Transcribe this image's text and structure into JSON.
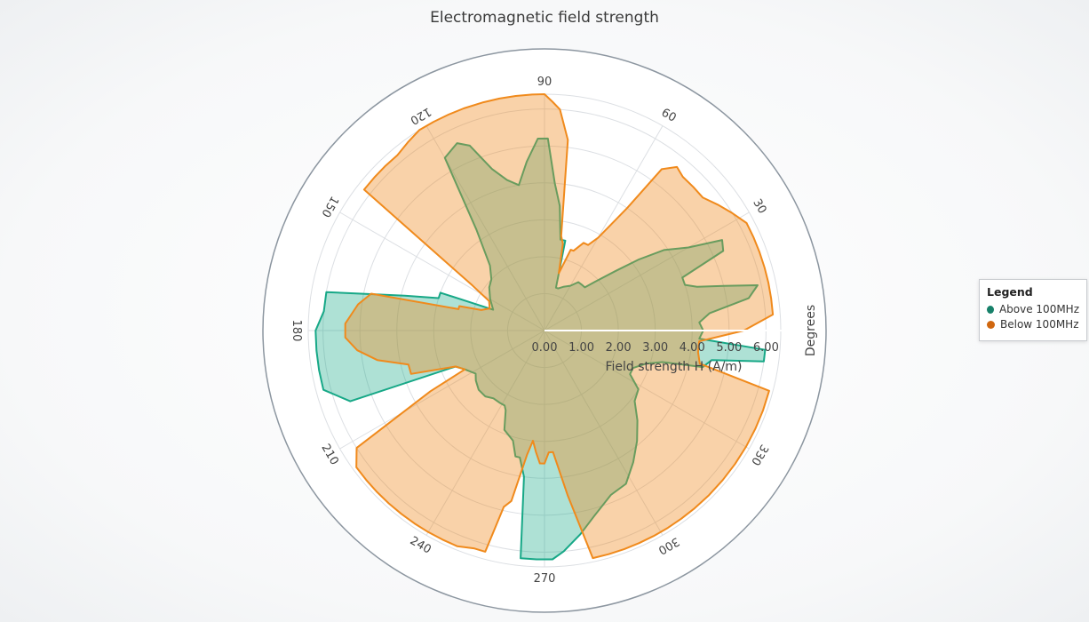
{
  "chart_data": {
    "type": "polar-area",
    "title": "Electromagnetic field strength",
    "radial_axis": {
      "label": "Field strength H (A/m)",
      "ticks": [
        "0.00",
        "1.00",
        "2.00",
        "3.00",
        "4.00",
        "5.00",
        "6.00"
      ],
      "range": [
        0,
        6.4
      ]
    },
    "angular_axis": {
      "label": "Degrees",
      "ticks": [
        "90",
        "60",
        "30",
        "0",
        "330",
        "300",
        "270",
        "240",
        "210",
        "180",
        "150",
        "120"
      ],
      "range": [
        0,
        360
      ]
    },
    "grid": true,
    "legend_position": "right",
    "series": [
      {
        "name": "Above 100MHz",
        "color": "#17a887",
        "points": [
          [
            0,
            4.3
          ],
          [
            3,
            4.2
          ],
          [
            6,
            4.5
          ],
          [
            9,
            5.6
          ],
          [
            12,
            5.9
          ],
          [
            14,
            5.0
          ],
          [
            16,
            4.3
          ],
          [
            18,
            4.0
          ],
          [
            21,
            4.0
          ],
          [
            24,
            5.3
          ],
          [
            27,
            5.4
          ],
          [
            30,
            4.5
          ],
          [
            34,
            3.9
          ],
          [
            37,
            3.2
          ],
          [
            40,
            2.5
          ],
          [
            44,
            1.9
          ],
          [
            47,
            1.6
          ],
          [
            51,
            1.6
          ],
          [
            55,
            1.6
          ],
          [
            60,
            1.4
          ],
          [
            66,
            1.3
          ],
          [
            72,
            1.2
          ],
          [
            75,
            1.2
          ],
          [
            77,
            2.5
          ],
          [
            80,
            2.5
          ],
          [
            83,
            3.4
          ],
          [
            86,
            4.0
          ],
          [
            89,
            5.2
          ],
          [
            92,
            5.2
          ],
          [
            96,
            4.6
          ],
          [
            100,
            4.0
          ],
          [
            104,
            4.2
          ],
          [
            108,
            4.6
          ],
          [
            112,
            5.4
          ],
          [
            115,
            5.6
          ],
          [
            120,
            5.4
          ],
          [
            124,
            3.3
          ],
          [
            130,
            2.3
          ],
          [
            136,
            2.0
          ],
          [
            142,
            1.9
          ],
          [
            150,
            1.7
          ],
          [
            158,
            1.5
          ],
          [
            160,
            3.0
          ],
          [
            163,
            3.0
          ],
          [
            166,
            3.9
          ],
          [
            170,
            6.0
          ],
          [
            175,
            6.0
          ],
          [
            180,
            6.2
          ],
          [
            185,
            6.2
          ],
          [
            190,
            6.2
          ],
          [
            195,
            6.2
          ],
          [
            200,
            5.6
          ],
          [
            202,
            2.6
          ],
          [
            206,
            2.4
          ],
          [
            212,
            2.2
          ],
          [
            216,
            2.3
          ],
          [
            222,
            2.4
          ],
          [
            228,
            2.4
          ],
          [
            233,
            2.3
          ],
          [
            238,
            2.3
          ],
          [
            242,
            2.3
          ],
          [
            244,
            2.4
          ],
          [
            248,
            2.9
          ],
          [
            254,
            3.1
          ],
          [
            257,
            3.5
          ],
          [
            259,
            3.5
          ],
          [
            262,
            4.0
          ],
          [
            264,
            6.2
          ],
          [
            268,
            6.2
          ],
          [
            272,
            6.2
          ],
          [
            275,
            6.0
          ],
          [
            280,
            5.6
          ],
          [
            285,
            5.2
          ],
          [
            292,
            4.8
          ],
          [
            298,
            4.7
          ],
          [
            304,
            4.3
          ],
          [
            310,
            3.9
          ],
          [
            316,
            3.5
          ],
          [
            322,
            3.1
          ],
          [
            328,
            3.0
          ],
          [
            333,
            2.6
          ],
          [
            337,
            2.6
          ],
          [
            342,
            2.9
          ],
          [
            345,
            3.3
          ],
          [
            347,
            4.4
          ],
          [
            350,
            4.6
          ],
          [
            352,
            6.0
          ],
          [
            355,
            6.0
          ],
          [
            357,
            4.2
          ]
        ]
      },
      {
        "name": "Below 100MHz",
        "color": "#f08a1c",
        "points": [
          [
            0,
            5.4
          ],
          [
            4,
            6.2
          ],
          [
            8,
            6.2
          ],
          [
            12,
            6.2
          ],
          [
            16,
            6.2
          ],
          [
            20,
            6.2
          ],
          [
            24,
            6.2
          ],
          [
            28,
            6.2
          ],
          [
            32,
            6.0
          ],
          [
            36,
            5.8
          ],
          [
            40,
            5.6
          ],
          [
            44,
            5.6
          ],
          [
            48,
            5.6
          ],
          [
            51,
            5.7
          ],
          [
            54,
            5.4
          ],
          [
            56,
            4.0
          ],
          [
            60,
            2.9
          ],
          [
            63,
            2.6
          ],
          [
            66,
            2.6
          ],
          [
            70,
            2.3
          ],
          [
            72,
            2.3
          ],
          [
            76,
            1.6
          ],
          [
            78,
            2.4
          ],
          [
            80,
            2.6
          ],
          [
            83,
            5.2
          ],
          [
            86,
            6.0
          ],
          [
            88,
            6.2
          ],
          [
            90,
            6.4
          ],
          [
            93,
            6.4
          ],
          [
            97,
            6.4
          ],
          [
            101,
            6.4
          ],
          [
            105,
            6.4
          ],
          [
            110,
            6.4
          ],
          [
            114,
            6.4
          ],
          [
            118,
            6.4
          ],
          [
            122,
            6.4
          ],
          [
            126,
            6.3
          ],
          [
            130,
            6.2
          ],
          [
            134,
            6.2
          ],
          [
            138,
            6.2
          ],
          [
            142,
            6.2
          ],
          [
            148,
            2.3
          ],
          [
            152,
            1.7
          ],
          [
            158,
            1.6
          ],
          [
            162,
            1.8
          ],
          [
            164,
            2.4
          ],
          [
            166,
            2.4
          ],
          [
            168,
            4.8
          ],
          [
            172,
            5.1
          ],
          [
            178,
            5.4
          ],
          [
            182,
            5.4
          ],
          [
            186,
            5.1
          ],
          [
            190,
            4.6
          ],
          [
            194,
            3.8
          ],
          [
            198,
            3.8
          ],
          [
            202,
            2.6
          ],
          [
            206,
            2.4
          ],
          [
            208,
            3.5
          ],
          [
            212,
            6.0
          ],
          [
            216,
            6.3
          ],
          [
            220,
            6.3
          ],
          [
            224,
            6.3
          ],
          [
            228,
            6.3
          ],
          [
            232,
            6.3
          ],
          [
            236,
            6.3
          ],
          [
            240,
            6.3
          ],
          [
            244,
            6.3
          ],
          [
            248,
            6.3
          ],
          [
            252,
            6.2
          ],
          [
            255,
            6.2
          ],
          [
            257,
            4.9
          ],
          [
            259,
            4.7
          ],
          [
            262,
            3.4
          ],
          [
            264,
            3.0
          ],
          [
            266,
            3.3
          ],
          [
            268,
            3.6
          ],
          [
            270,
            3.6
          ],
          [
            272,
            3.3
          ],
          [
            274,
            3.3
          ],
          [
            278,
            4.5
          ],
          [
            282,
            6.3
          ],
          [
            286,
            6.3
          ],
          [
            290,
            6.3
          ],
          [
            294,
            6.3
          ],
          [
            298,
            6.3
          ],
          [
            302,
            6.3
          ],
          [
            306,
            6.3
          ],
          [
            310,
            6.3
          ],
          [
            315,
            6.3
          ],
          [
            320,
            6.3
          ],
          [
            325,
            6.3
          ],
          [
            330,
            6.3
          ],
          [
            335,
            6.3
          ],
          [
            340,
            6.3
          ],
          [
            345,
            6.3
          ],
          [
            348,
            4.3
          ],
          [
            352,
            4.2
          ],
          [
            356,
            4.2
          ]
        ]
      }
    ]
  },
  "legend": {
    "title": "Legend",
    "items": [
      {
        "label": "Above 100MHz",
        "color": "#17816a"
      },
      {
        "label": "Below 100MHz",
        "color": "#d0670f"
      }
    ]
  }
}
